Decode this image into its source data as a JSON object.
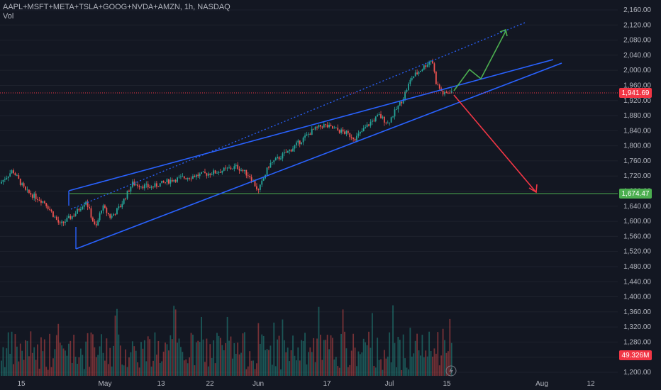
{
  "legend": {
    "symbol_line": "AAPL+MSFT+META+TSLA+GOOG+NVDA+AMZN, 1h, NASDAQ",
    "volume_label": "Vol"
  },
  "colors": {
    "background": "#131722",
    "up": "#26a69a",
    "down": "#ef5350",
    "channel": "#2962ff",
    "support": "#4caf50",
    "bull_arrow": "#4caf50",
    "bear_arrow": "#f23645",
    "last_price": "#f23645",
    "grid": "#1e222d"
  },
  "chart_data": {
    "type": "candlestick",
    "price_axis_ticks": [
      "2,160.00",
      "2,120.00",
      "2,080.00",
      "2,040.00",
      "2,000.00",
      "1,960.00",
      "1,920.00",
      "1,880.00",
      "1,840.00",
      "1,800.00",
      "1,760.00",
      "1,720.00",
      "1,680.00",
      "1,640.00",
      "1,600.00",
      "1,560.00",
      "1,520.00",
      "1,480.00",
      "1,440.00",
      "1,400.00",
      "1,360.00",
      "1,320.00",
      "1,280.00",
      "1,240.00",
      "1,200.00"
    ],
    "time_axis_ticks": [
      "15",
      "May",
      "13",
      "22",
      "Jun",
      "17",
      "Jul",
      "15",
      "Aug",
      "12"
    ],
    "last_price": {
      "value": 1941.69,
      "label": "1,941.69"
    },
    "support_level": {
      "value": 1674.47,
      "label": "1,674.47"
    },
    "volume_value": {
      "value": 49.326,
      "label": "49.326M"
    },
    "ylim": [
      1190,
      2175
    ],
    "price_path": [
      {
        "x": 0,
        "y": 1700
      },
      {
        "x": 1.2,
        "y": 1735
      },
      {
        "x": 2.4,
        "y": 1680
      },
      {
        "x": 4.2,
        "y": 1650
      },
      {
        "x": 5.6,
        "y": 1590
      },
      {
        "x": 7.0,
        "y": 1620
      },
      {
        "x": 8.0,
        "y": 1655
      },
      {
        "x": 8.9,
        "y": 1580
      },
      {
        "x": 9.5,
        "y": 1640
      },
      {
        "x": 10.3,
        "y": 1610
      },
      {
        "x": 11.2,
        "y": 1640
      },
      {
        "x": 12.3,
        "y": 1700
      },
      {
        "x": 14.0,
        "y": 1690
      },
      {
        "x": 16.0,
        "y": 1710
      },
      {
        "x": 18.0,
        "y": 1720
      },
      {
        "x": 20.0,
        "y": 1730
      },
      {
        "x": 22.0,
        "y": 1745
      },
      {
        "x": 23.2,
        "y": 1720
      },
      {
        "x": 24.0,
        "y": 1680
      },
      {
        "x": 25.0,
        "y": 1750
      },
      {
        "x": 27.0,
        "y": 1790
      },
      {
        "x": 29.0,
        "y": 1840
      },
      {
        "x": 30.0,
        "y": 1855
      },
      {
        "x": 32.0,
        "y": 1835
      },
      {
        "x": 33.0,
        "y": 1820
      },
      {
        "x": 34.5,
        "y": 1865
      },
      {
        "x": 35.2,
        "y": 1880
      },
      {
        "x": 36.0,
        "y": 1860
      },
      {
        "x": 37.3,
        "y": 1920
      },
      {
        "x": 38.2,
        "y": 1980
      },
      {
        "x": 39.0,
        "y": 2000
      },
      {
        "x": 40.1,
        "y": 2030
      },
      {
        "x": 40.5,
        "y": 1965
      },
      {
        "x": 41.2,
        "y": 1935
      },
      {
        "x": 41.8,
        "y": 1945
      }
    ]
  }
}
